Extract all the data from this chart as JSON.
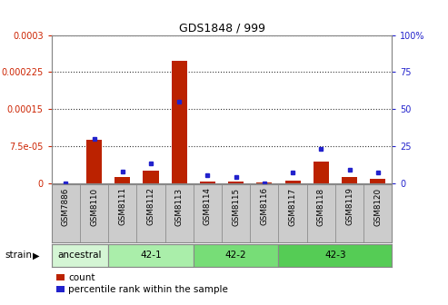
{
  "title": "GDS1848 / 999",
  "samples": [
    "GSM7886",
    "GSM8110",
    "GSM8111",
    "GSM8112",
    "GSM8113",
    "GSM8114",
    "GSM8115",
    "GSM8116",
    "GSM8117",
    "GSM8118",
    "GSM8119",
    "GSM8120"
  ],
  "counts": [
    0.0,
    8.8e-05,
    1.3e-05,
    2.5e-05,
    0.000248,
    3e-06,
    3e-06,
    2e-06,
    5e-06,
    4.3e-05,
    1.3e-05,
    8e-06
  ],
  "percentiles": [
    0.0,
    30.0,
    8.0,
    13.0,
    55.0,
    5.0,
    4.0,
    0.0,
    7.0,
    23.0,
    9.0,
    7.0
  ],
  "ylim_left": [
    0,
    0.0003
  ],
  "ylim_right": [
    0,
    100
  ],
  "yticks_left": [
    0,
    7.5e-05,
    0.00015,
    0.000225,
    0.0003
  ],
  "ytick_labels_left": [
    "0",
    "7.5e-05",
    "0.00015",
    "0.000225",
    "0.0003"
  ],
  "yticks_right": [
    0,
    25,
    50,
    75,
    100
  ],
  "ytick_labels_right": [
    "0",
    "25",
    "50",
    "75",
    "100%"
  ],
  "strain_groups": [
    {
      "label": "ancestral",
      "start": 0,
      "end": 2,
      "color": "#d4f5d4"
    },
    {
      "label": "42-1",
      "start": 2,
      "end": 5,
      "color": "#aaeeaa"
    },
    {
      "label": "42-2",
      "start": 5,
      "end": 8,
      "color": "#77dd77"
    },
    {
      "label": "42-3",
      "start": 8,
      "end": 12,
      "color": "#55cc55"
    }
  ],
  "bar_color": "#bb2200",
  "marker_color": "#2222cc",
  "bar_width": 0.55,
  "legend_count_label": "count",
  "legend_pct_label": "percentile rank within the sample",
  "strain_label": "strain",
  "bg_color": "#ffffff",
  "tick_label_color_left": "#cc2200",
  "tick_label_color_right": "#2222cc",
  "xtick_bg_color": "#cccccc",
  "grid_color": "#333333",
  "border_color": "#888888"
}
